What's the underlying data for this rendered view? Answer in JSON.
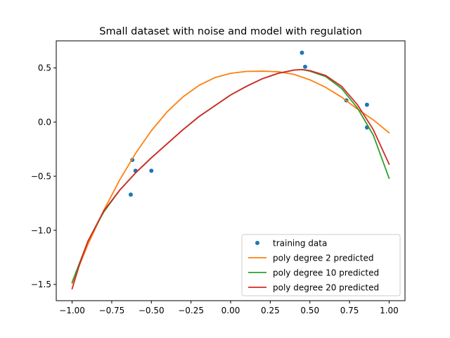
{
  "chart_data": {
    "type": "line",
    "title": "Small dataset with noise and model with regulation",
    "xlabel": "",
    "ylabel": "",
    "xlim": [
      -1.1,
      1.1
    ],
    "ylim": [
      -1.65,
      0.75
    ],
    "x_ticks": [
      -1.0,
      -0.75,
      -0.5,
      -0.25,
      0.0,
      0.25,
      0.5,
      0.75,
      1.0
    ],
    "x_tick_labels": [
      "−1.00",
      "−0.75",
      "−0.50",
      "−0.25",
      "0.00",
      "0.25",
      "0.50",
      "0.75",
      "1.00"
    ],
    "y_ticks": [
      -1.5,
      -1.0,
      -0.5,
      0.0,
      0.5
    ],
    "y_tick_labels": [
      "−1.5",
      "−1.0",
      "−0.5",
      "0.0",
      "0.5"
    ],
    "grid": false,
    "legend_position": "lower-right",
    "series": [
      {
        "name": "training data",
        "kind": "scatter",
        "color": "#1f77b4",
        "points": [
          [
            -0.62,
            -0.35
          ],
          [
            -0.6,
            -0.45
          ],
          [
            -0.63,
            -0.67
          ],
          [
            -0.5,
            -0.45
          ],
          [
            0.45,
            0.64
          ],
          [
            0.47,
            0.51
          ],
          [
            0.73,
            0.2
          ],
          [
            0.86,
            0.16
          ],
          [
            0.86,
            -0.05
          ]
        ]
      },
      {
        "name": "poly degree 2 predicted",
        "kind": "line",
        "color": "#ff7f0e",
        "points": [
          [
            -1.0,
            -1.49
          ],
          [
            -0.9,
            -1.13
          ],
          [
            -0.8,
            -0.815
          ],
          [
            -0.7,
            -0.535
          ],
          [
            -0.6,
            -0.29
          ],
          [
            -0.5,
            -0.08
          ],
          [
            -0.4,
            0.095
          ],
          [
            -0.3,
            0.233
          ],
          [
            -0.2,
            0.338
          ],
          [
            -0.1,
            0.41
          ],
          [
            0.0,
            0.45
          ],
          [
            0.1,
            0.468
          ],
          [
            0.2,
            0.47
          ],
          [
            0.25,
            0.467
          ],
          [
            0.3,
            0.465
          ],
          [
            0.4,
            0.44
          ],
          [
            0.5,
            0.39
          ],
          [
            0.6,
            0.32
          ],
          [
            0.7,
            0.23
          ],
          [
            0.8,
            0.12
          ],
          [
            0.9,
            0.02
          ],
          [
            1.0,
            -0.1
          ]
        ]
      },
      {
        "name": "poly degree 10 predicted",
        "kind": "line",
        "color": "#2ca02c",
        "points": [
          [
            -1.0,
            -1.48
          ],
          [
            -0.9,
            -1.1
          ],
          [
            -0.8,
            -0.83
          ],
          [
            -0.7,
            -0.63
          ],
          [
            -0.6,
            -0.47
          ],
          [
            -0.5,
            -0.33
          ],
          [
            -0.4,
            -0.2
          ],
          [
            -0.3,
            -0.07
          ],
          [
            -0.2,
            0.05
          ],
          [
            -0.1,
            0.15
          ],
          [
            0.0,
            0.25
          ],
          [
            0.1,
            0.33
          ],
          [
            0.2,
            0.4
          ],
          [
            0.3,
            0.45
          ],
          [
            0.4,
            0.48
          ],
          [
            0.45,
            0.485
          ],
          [
            0.5,
            0.47
          ],
          [
            0.6,
            0.42
          ],
          [
            0.7,
            0.31
          ],
          [
            0.8,
            0.13
          ],
          [
            0.9,
            -0.12
          ],
          [
            1.0,
            -0.52
          ]
        ]
      },
      {
        "name": "poly degree 20 predicted",
        "kind": "line",
        "color": "#d62728",
        "points": [
          [
            -1.0,
            -1.54
          ],
          [
            -0.95,
            -1.3
          ],
          [
            -0.9,
            -1.1
          ],
          [
            -0.8,
            -0.82
          ],
          [
            -0.7,
            -0.63
          ],
          [
            -0.6,
            -0.47
          ],
          [
            -0.5,
            -0.33
          ],
          [
            -0.4,
            -0.2
          ],
          [
            -0.3,
            -0.07
          ],
          [
            -0.2,
            0.05
          ],
          [
            -0.1,
            0.15
          ],
          [
            0.0,
            0.25
          ],
          [
            0.1,
            0.33
          ],
          [
            0.2,
            0.4
          ],
          [
            0.3,
            0.45
          ],
          [
            0.4,
            0.48
          ],
          [
            0.45,
            0.485
          ],
          [
            0.5,
            0.475
          ],
          [
            0.6,
            0.43
          ],
          [
            0.7,
            0.33
          ],
          [
            0.8,
            0.16
          ],
          [
            0.9,
            -0.07
          ],
          [
            1.0,
            -0.39
          ]
        ]
      }
    ]
  }
}
